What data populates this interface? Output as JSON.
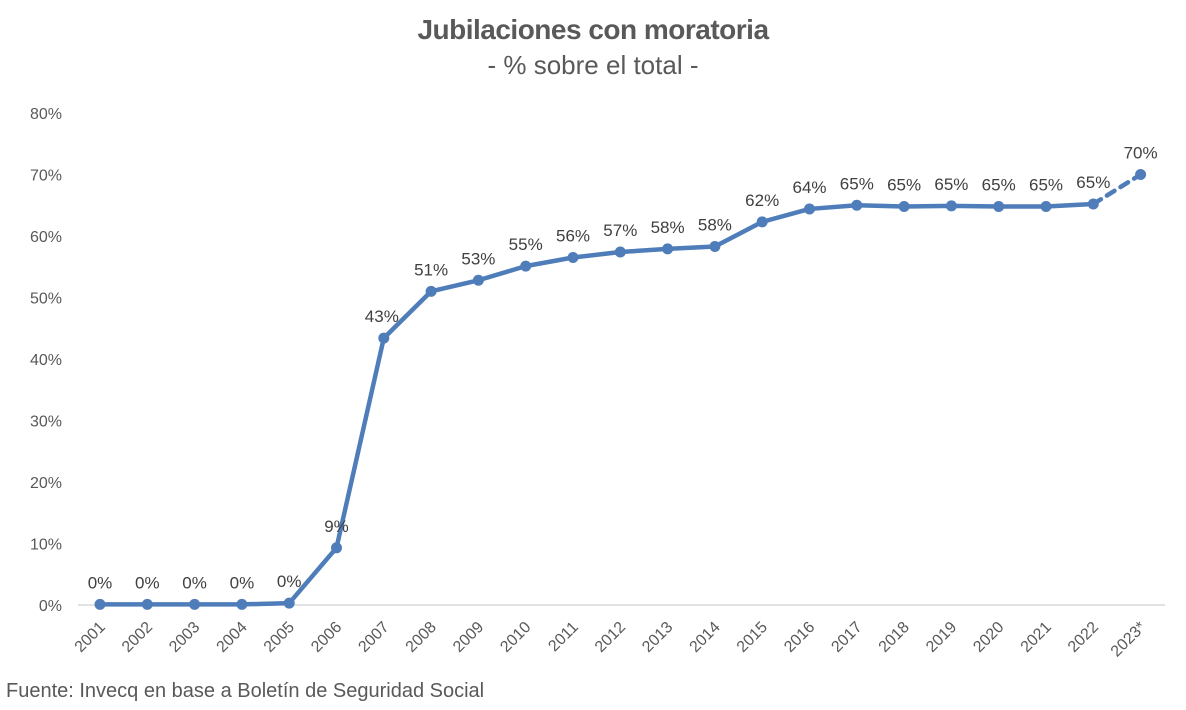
{
  "chart_data": {
    "type": "line",
    "title": "Jubilaciones con moratoria",
    "subtitle": "- % sobre el total -",
    "categories": [
      "2001",
      "2002",
      "2003",
      "2004",
      "2005",
      "2006",
      "2007",
      "2008",
      "2009",
      "2010",
      "2011",
      "2012",
      "2013",
      "2014",
      "2015",
      "2016",
      "2017",
      "2018",
      "2019",
      "2020",
      "2021",
      "2022",
      "2023*"
    ],
    "series": [
      {
        "values": [
          0.1,
          0.1,
          0.1,
          0.1,
          0.3,
          9.3,
          43.4,
          51.0,
          52.8,
          55.1,
          56.5,
          57.4,
          57.9,
          58.3,
          62.3,
          64.4,
          65.0,
          64.8,
          64.9,
          64.8,
          64.8,
          65.2,
          70.0
        ],
        "labels": [
          "0%",
          "0%",
          "0%",
          "0%",
          "0%",
          "9%",
          "43%",
          "51%",
          "53%",
          "55%",
          "56%",
          "57%",
          "58%",
          "58%",
          "62%",
          "64%",
          "65%",
          "65%",
          "65%",
          "65%",
          "65%",
          "65%",
          "70%"
        ],
        "color": "#4f7dba"
      }
    ],
    "dashed_segment_from": "2022",
    "y_ticks": [
      "0%",
      "10%",
      "20%",
      "30%",
      "40%",
      "50%",
      "60%",
      "70%",
      "80%"
    ],
    "ylim": [
      0,
      80
    ],
    "xlabel": "",
    "ylabel": "",
    "grid": false,
    "legend": "none"
  },
  "source": "Fuente: Invecq en base a Boletín de Seguridad Social"
}
